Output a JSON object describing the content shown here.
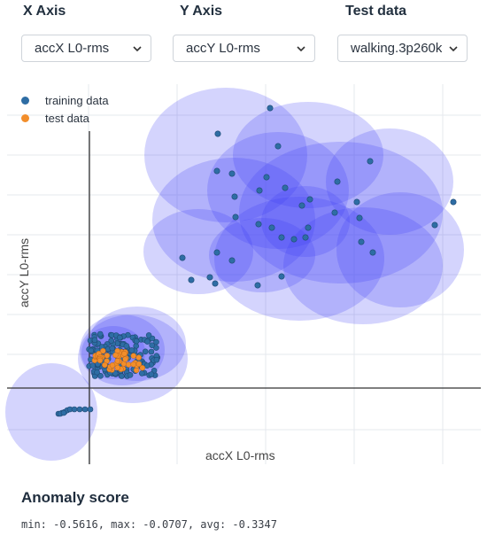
{
  "controls": {
    "x_axis": {
      "label": "X Axis",
      "selected": "accX L0-rms"
    },
    "y_axis": {
      "label": "Y Axis",
      "selected": "accY L0-rms"
    },
    "test_data": {
      "label": "Test data",
      "selected": "walking.3p260k"
    }
  },
  "chart_data": {
    "type": "scatter",
    "title": "",
    "xlabel": "accX L0-rms",
    "ylabel": "accY L0-rms",
    "grid": true,
    "legend_position": "top-left",
    "series": [
      {
        "name": "training data",
        "color": "#2e6da4"
      },
      {
        "name": "test data",
        "color": "#f28e2b"
      }
    ]
  },
  "anomaly": {
    "title": "Anomaly score",
    "summary": "min: -0.5616, max: -0.0707, avg: -0.3347"
  },
  "colors": {
    "region_fill": "#3b3bf5",
    "training_point": "#2e6da4",
    "test_point": "#f28e2b"
  }
}
